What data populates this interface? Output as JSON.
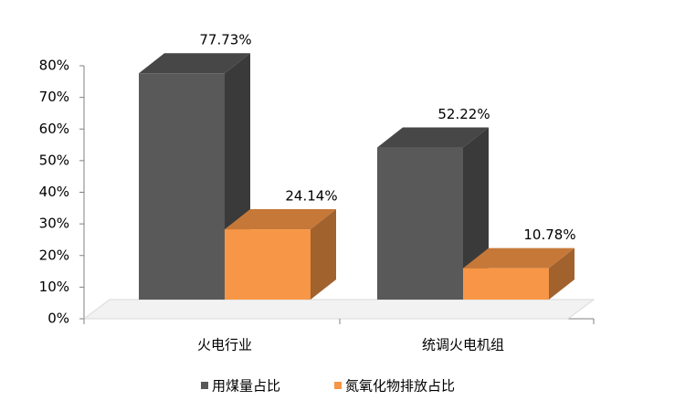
{
  "chart_data": {
    "type": "bar3d",
    "categories": [
      "火电行业",
      "统调火电机组"
    ],
    "series": [
      {
        "name": "用煤量占比",
        "color": "#595959",
        "values": [
          77.73,
          52.22
        ],
        "value_labels": [
          "77.73%",
          "52.22%"
        ]
      },
      {
        "name": "氮氧化物排放占比",
        "color": "#f79646",
        "values": [
          24.14,
          10.78
        ],
        "value_labels": [
          "24.14%",
          "10.78%"
        ]
      }
    ],
    "ylim": [
      0,
      80
    ],
    "yticks": [
      {
        "value": 0,
        "label": "0%"
      },
      {
        "value": 10,
        "label": "10%"
      },
      {
        "value": 20,
        "label": "20%"
      },
      {
        "value": 30,
        "label": "30%"
      },
      {
        "value": 40,
        "label": "40%"
      },
      {
        "value": 50,
        "label": "50%"
      },
      {
        "value": 60,
        "label": "60%"
      },
      {
        "value": 70,
        "label": "70%"
      },
      {
        "value": 80,
        "label": "80%"
      }
    ],
    "legend": "bottom"
  }
}
